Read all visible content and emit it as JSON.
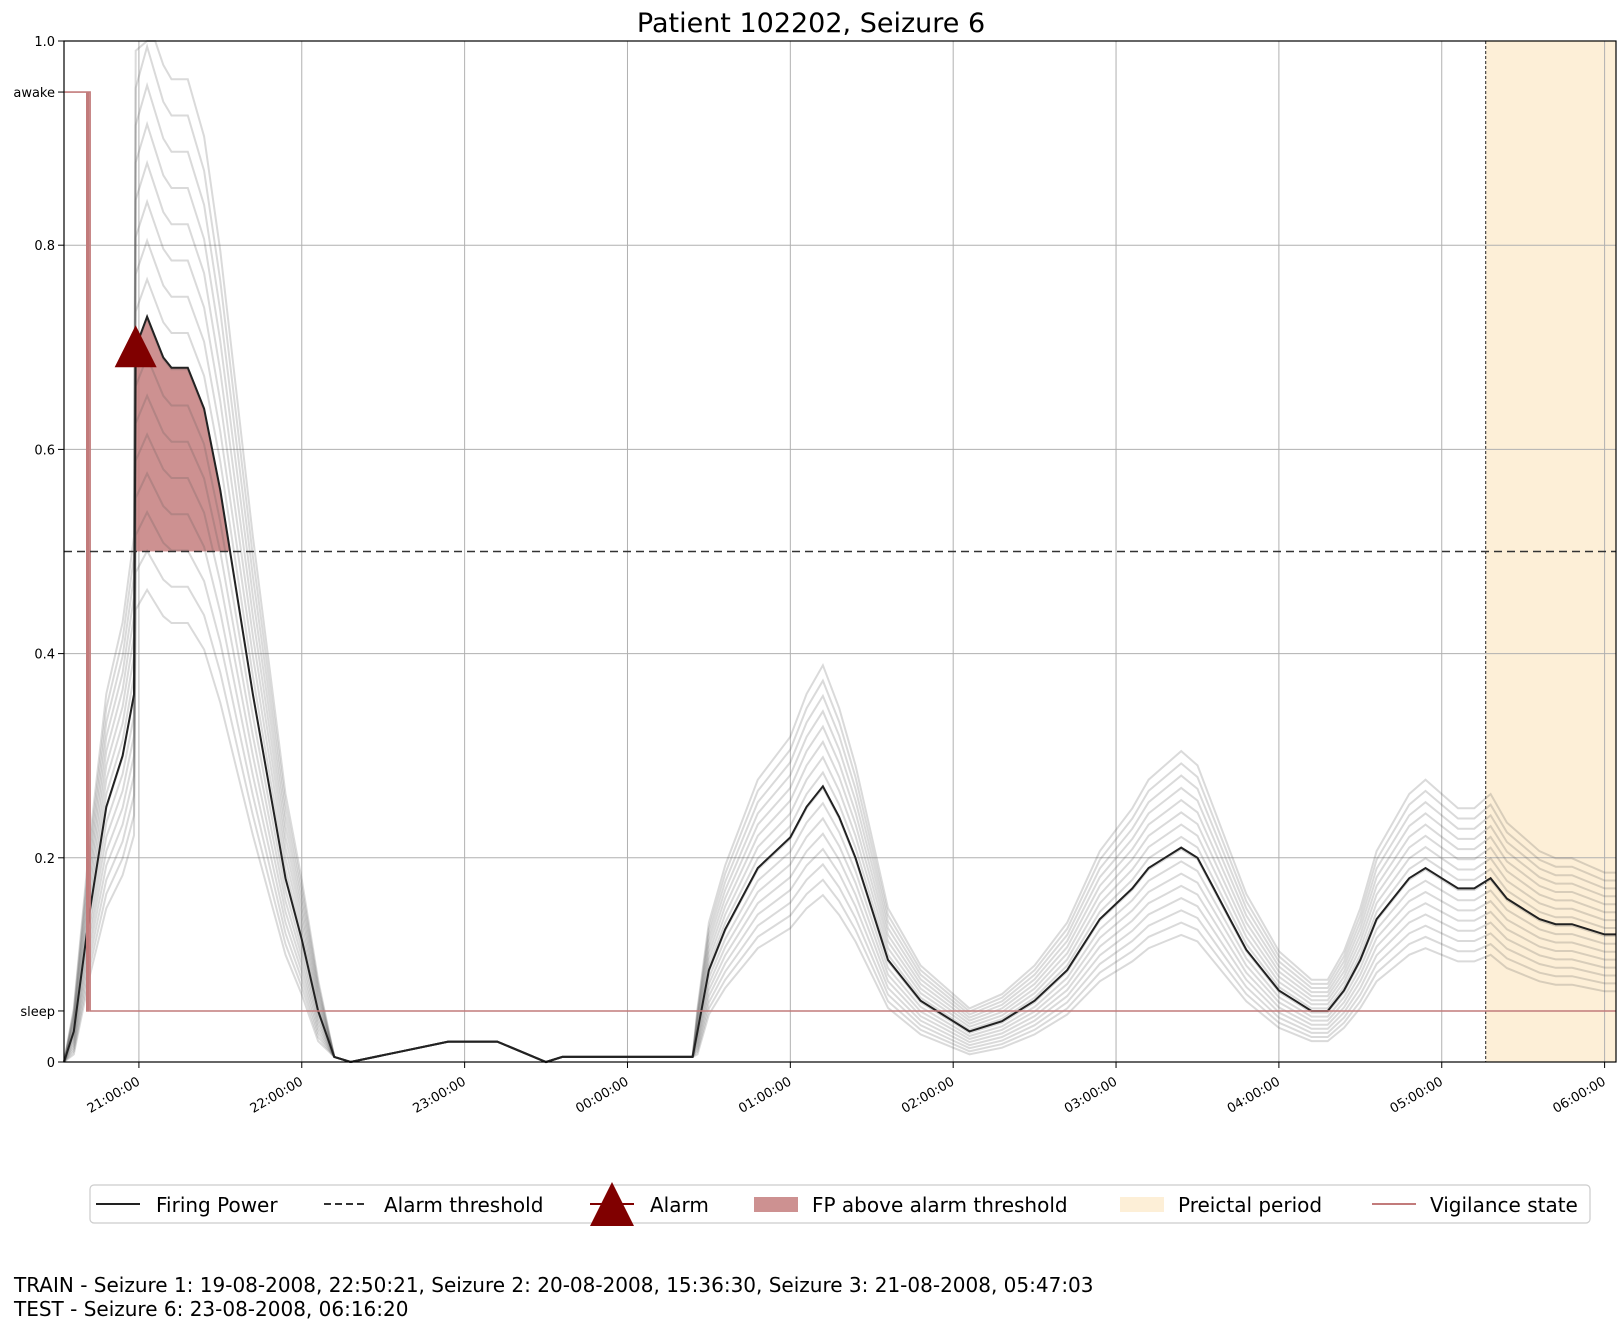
{
  "chart_data": {
    "type": "line",
    "title": "Patient 102202, Seizure 6",
    "xlabel": "",
    "ylabel": "",
    "x_tick_labels": [
      "21:00:00",
      "22:00:00",
      "23:00:00",
      "00:00:00",
      "01:00:00",
      "02:00:00",
      "03:00:00",
      "04:00:00",
      "05:00:00",
      "06:00:00"
    ],
    "x_range_hours": [
      20.54,
      30.07
    ],
    "y_ticks": [
      "0",
      "0.2",
      "0.4",
      "0.6",
      "0.8",
      "1.0"
    ],
    "y_state_labels": {
      "sleep": "sleep",
      "awake": "awake"
    },
    "ylim": [
      0,
      1
    ],
    "grid": true,
    "alarm_threshold": 0.5,
    "sleep_level": 0.05,
    "awake_level": 0.95,
    "preictal_period_hours": [
      29.27,
      30.07
    ],
    "alarm": {
      "time_hours": 20.98,
      "value": 0.7
    },
    "series": [
      {
        "name": "Firing Power",
        "x_hours": [
          20.54,
          20.6,
          20.7,
          20.8,
          20.9,
          20.97,
          20.98,
          21.05,
          21.1,
          21.15,
          21.2,
          21.3,
          21.4,
          21.5,
          21.6,
          21.7,
          21.8,
          21.9,
          22.0,
          22.1,
          22.2,
          22.3,
          22.6,
          22.9,
          23.2,
          23.5,
          23.6,
          24.4,
          24.43,
          24.5,
          24.6,
          24.7,
          24.8,
          25.0,
          25.1,
          25.2,
          25.3,
          25.4,
          25.5,
          25.6,
          25.8,
          26.0,
          26.1,
          26.3,
          26.5,
          26.7,
          26.9,
          27.1,
          27.2,
          27.3,
          27.4,
          27.5,
          27.6,
          27.7,
          27.8,
          27.9,
          28.0,
          28.1,
          28.2,
          28.3,
          28.4,
          28.5,
          28.55,
          28.6,
          28.7,
          28.8,
          28.9,
          29.0,
          29.1,
          29.2,
          29.3,
          29.4,
          29.5,
          29.6,
          29.7,
          29.8,
          29.9,
          30.0,
          30.07
        ],
        "values": [
          0.0,
          0.03,
          0.15,
          0.25,
          0.3,
          0.36,
          0.7,
          0.73,
          0.71,
          0.69,
          0.68,
          0.68,
          0.64,
          0.56,
          0.46,
          0.36,
          0.27,
          0.18,
          0.12,
          0.05,
          0.005,
          0.0,
          0.01,
          0.02,
          0.02,
          0.0,
          0.005,
          0.005,
          0.03,
          0.09,
          0.13,
          0.16,
          0.19,
          0.22,
          0.25,
          0.27,
          0.24,
          0.2,
          0.15,
          0.1,
          0.06,
          0.04,
          0.03,
          0.04,
          0.06,
          0.09,
          0.14,
          0.17,
          0.19,
          0.2,
          0.21,
          0.2,
          0.17,
          0.14,
          0.11,
          0.09,
          0.07,
          0.06,
          0.05,
          0.05,
          0.07,
          0.1,
          0.12,
          0.14,
          0.16,
          0.18,
          0.19,
          0.18,
          0.17,
          0.17,
          0.18,
          0.16,
          0.15,
          0.14,
          0.135,
          0.135,
          0.13,
          0.125,
          0.125
        ]
      },
      {
        "name": "Vigilance state",
        "x_hours": [
          20.54,
          20.68,
          20.68,
          20.69,
          20.69,
          20.7,
          20.7,
          30.07
        ],
        "values": [
          0.95,
          0.95,
          0.05,
          0.05,
          0.95,
          0.95,
          0.05,
          0.05
        ]
      }
    ],
    "legend": [
      "Firing Power",
      "Alarm threshold",
      "Alarm",
      "FP above alarm threshold",
      "Preictal period",
      "Vigilance state"
    ],
    "legend_placement": "bottom-center",
    "colors": {
      "firing_power": "#222222",
      "ensemble": "#9a9a9a",
      "threshold": "#333333",
      "alarm": "#800000",
      "fp_fill": "#c47e7e",
      "preictal": "#fdefd7",
      "vigilance": "#c27b7b",
      "grid": "#b0b0b0"
    }
  },
  "footer": {
    "train": "TRAIN - Seizure 1: 19-08-2008, 22:50:21, Seizure 2: 20-08-2008, 15:36:30, Seizure 3: 21-08-2008, 05:47:03",
    "test": "TEST - Seizure 6: 23-08-2008, 06:16:20"
  }
}
